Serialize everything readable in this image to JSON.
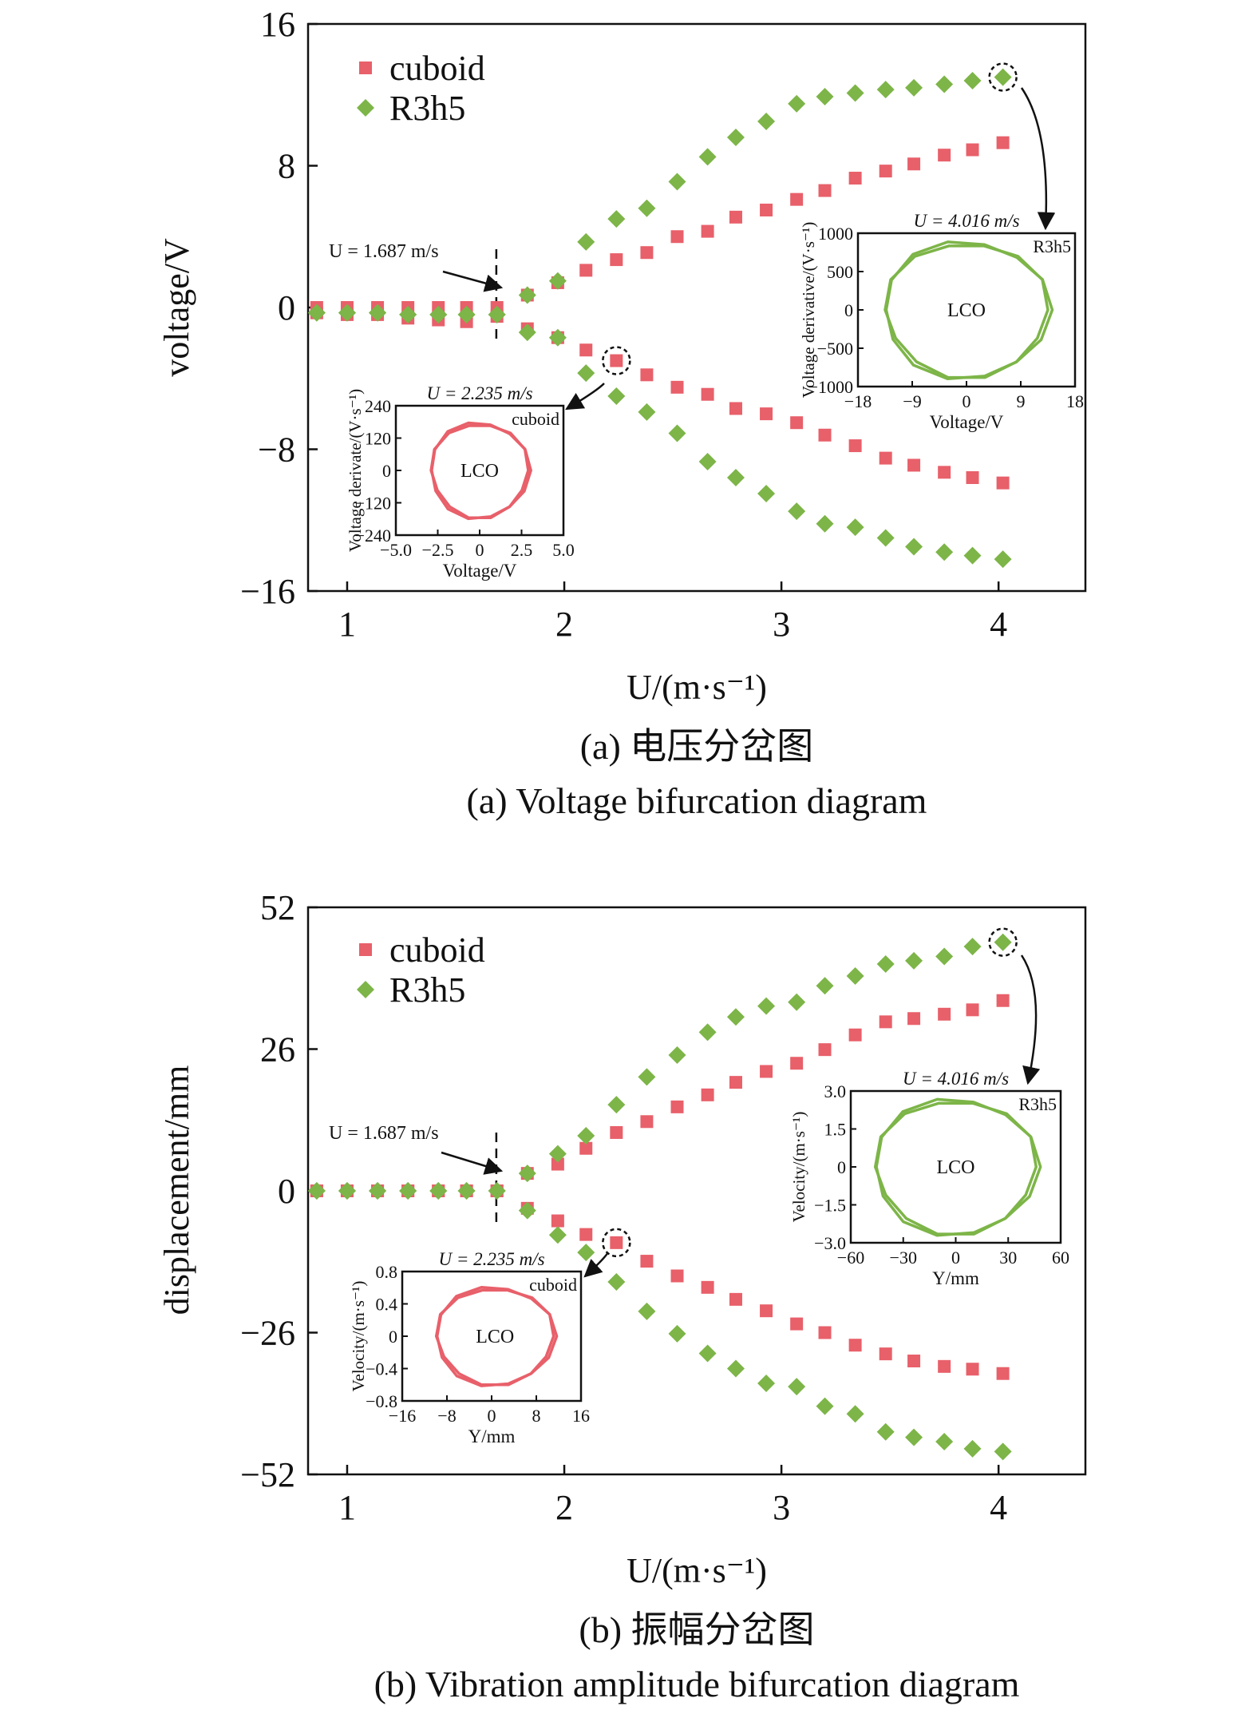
{
  "colors": {
    "cuboid": "#e8606a",
    "r3h5": "#7db548",
    "axis": "#111111"
  },
  "chart_data": [
    {
      "type": "scatter",
      "caption_zh": "(a) 电压分岔图",
      "caption_en": "(a) Voltage bifurcation diagram",
      "xlabel": "U/(m·s⁻¹)",
      "ylabel": "voltage/V",
      "xlim": [
        0.82,
        4.4
      ],
      "ylim": [
        -16,
        16
      ],
      "xticks": [
        1,
        2,
        3,
        4
      ],
      "yticks": [
        16,
        8,
        0,
        -8,
        -16
      ],
      "yticklabels": [
        "16",
        "8",
        "0",
        "−8",
        "−16"
      ],
      "legend": {
        "placement": "top-left",
        "entries": [
          "cuboid",
          "R3h5"
        ]
      },
      "onset_annotation": {
        "x": 1.687,
        "label": "U = 1.687 m/s"
      },
      "x": [
        0.86,
        1.0,
        1.14,
        1.28,
        1.42,
        1.55,
        1.69,
        1.83,
        1.97,
        2.1,
        2.24,
        2.38,
        2.52,
        2.66,
        2.79,
        2.93,
        3.07,
        3.2,
        3.34,
        3.48,
        3.61,
        3.75,
        3.88,
        4.02
      ],
      "series": [
        {
          "name": "cuboid",
          "marker": "square",
          "color": "#e8606a",
          "upper": [
            0.0,
            0.0,
            0.0,
            0.0,
            0.0,
            0.0,
            0.0,
            0.7,
            1.4,
            2.1,
            2.7,
            3.1,
            4.0,
            4.3,
            5.1,
            5.5,
            6.1,
            6.6,
            7.3,
            7.7,
            8.1,
            8.6,
            8.9,
            9.3
          ],
          "lower": [
            -0.3,
            -0.4,
            -0.4,
            -0.6,
            -0.7,
            -0.8,
            -0.5,
            -1.2,
            -1.7,
            -2.4,
            -3.0,
            -3.8,
            -4.5,
            -4.9,
            -5.7,
            -6.0,
            -6.5,
            -7.2,
            -7.8,
            -8.5,
            -8.9,
            -9.3,
            -9.6,
            -9.9
          ]
        },
        {
          "name": "R3h5",
          "marker": "diamond",
          "color": "#7db548",
          "upper": [
            -0.3,
            -0.3,
            -0.3,
            -0.4,
            -0.4,
            -0.4,
            -0.4,
            0.7,
            1.5,
            3.7,
            5.0,
            5.6,
            7.1,
            8.5,
            9.6,
            10.5,
            11.5,
            11.9,
            12.1,
            12.3,
            12.4,
            12.6,
            12.8,
            13.0
          ],
          "lower": [
            -0.3,
            -0.3,
            -0.3,
            -0.4,
            -0.4,
            -0.4,
            -0.4,
            -1.4,
            -1.7,
            -3.7,
            -5.0,
            -5.9,
            -7.1,
            -8.7,
            -9.6,
            -10.5,
            -11.5,
            -12.2,
            -12.4,
            -13.0,
            -13.5,
            -13.8,
            -14.0,
            -14.2
          ]
        }
      ],
      "insets": [
        {
          "type": "line",
          "series_name": "cuboid",
          "title": "U = 2.235 m/s",
          "label": "cuboid",
          "center_text": "LCO",
          "xlabel": "Voltage/V",
          "ylabel": "Voltage derivate/(V·s⁻¹)",
          "xlim": [
            -5,
            5
          ],
          "ylim": [
            -240,
            240
          ],
          "xticklabels": [
            "−5.0",
            "−2.5",
            "0",
            "2.5",
            "5.0"
          ],
          "yticklabels": [
            "240",
            "120",
            "0",
            "−120",
            "−240"
          ],
          "orbit": {
            "center_x": 0,
            "center_y": 0,
            "amp_x": 2.9,
            "amp_y": 175
          },
          "source_point": {
            "x": 2.24,
            "y": -3.0
          }
        },
        {
          "type": "line",
          "series_name": "R3h5",
          "title": "U = 4.016 m/s",
          "label": "R3h5",
          "center_text": "LCO",
          "xlabel": "Voltage/V",
          "ylabel": "Voltage derivative/(V·s⁻¹)",
          "xlim": [
            -18,
            18
          ],
          "ylim": [
            -1000,
            1000
          ],
          "xticklabels": [
            "−18",
            "−9",
            "0",
            "9",
            "18"
          ],
          "yticklabels": [
            "1000",
            "500",
            "0",
            "−500",
            "−1000"
          ],
          "orbit": {
            "center_x": 0,
            "center_y": 0,
            "amp_x": 13.5,
            "amp_y": 880
          },
          "source_point": {
            "x": 4.02,
            "y": 13.0
          }
        }
      ]
    },
    {
      "type": "scatter",
      "caption_zh": "(b) 振幅分岔图",
      "caption_en": "(b) Vibration amplitude bifurcation diagram",
      "xlabel": "U/(m·s⁻¹)",
      "ylabel": "displacement/mm",
      "xlim": [
        0.82,
        4.4
      ],
      "ylim": [
        -52,
        52
      ],
      "xticks": [
        1,
        2,
        3,
        4
      ],
      "yticks": [
        52,
        26,
        0,
        -26,
        -52
      ],
      "yticklabels": [
        "52",
        "26",
        "0",
        "−26",
        "−52"
      ],
      "legend": {
        "placement": "top-left",
        "entries": [
          "cuboid",
          "R3h5"
        ]
      },
      "onset_annotation": {
        "x": 1.687,
        "label": "U = 1.687 m/s"
      },
      "x": [
        0.86,
        1.0,
        1.14,
        1.28,
        1.42,
        1.55,
        1.69,
        1.83,
        1.97,
        2.1,
        2.24,
        2.38,
        2.52,
        2.66,
        2.79,
        2.93,
        3.07,
        3.2,
        3.34,
        3.48,
        3.61,
        3.75,
        3.88,
        4.02
      ],
      "series": [
        {
          "name": "cuboid",
          "marker": "square",
          "color": "#e8606a",
          "upper": [
            0.0,
            0.0,
            0.0,
            0.0,
            0.0,
            0.0,
            0.0,
            3.2,
            4.9,
            7.8,
            10.7,
            12.7,
            15.4,
            17.6,
            19.9,
            21.9,
            23.4,
            25.9,
            28.6,
            31.0,
            31.6,
            32.4,
            33.2,
            34.9
          ],
          "lower": [
            0.0,
            0.0,
            0.0,
            0.0,
            0.0,
            0.0,
            0.0,
            -3.2,
            -5.5,
            -8.0,
            -9.5,
            -12.9,
            -15.6,
            -17.7,
            -19.9,
            -22.0,
            -24.4,
            -26.0,
            -28.3,
            -29.9,
            -31.2,
            -32.2,
            -32.7,
            -33.5
          ]
        },
        {
          "name": "R3h5",
          "marker": "diamond",
          "color": "#7db548",
          "upper": [
            0.0,
            0.0,
            0.0,
            0.0,
            0.0,
            0.0,
            0.0,
            3.2,
            6.8,
            10.1,
            15.8,
            20.9,
            24.9,
            29.1,
            31.9,
            33.9,
            34.6,
            37.6,
            39.4,
            41.6,
            42.2,
            43.0,
            44.8,
            45.6
          ],
          "lower": [
            0.0,
            0.0,
            0.0,
            0.0,
            0.0,
            0.0,
            0.0,
            -3.6,
            -8.1,
            -11.3,
            -16.7,
            -22.1,
            -26.2,
            -29.8,
            -32.6,
            -35.3,
            -35.9,
            -39.5,
            -40.9,
            -44.2,
            -45.2,
            -46.0,
            -47.3,
            -47.8
          ]
        }
      ],
      "insets": [
        {
          "type": "line",
          "series_name": "cuboid",
          "title": "U = 2.235 m/s",
          "label": "cuboid",
          "center_text": "LCO",
          "xlabel": "Y/mm",
          "ylabel": "Velocity/(m·s⁻¹)",
          "xlim": [
            -16,
            16
          ],
          "ylim": [
            -0.8,
            0.8
          ],
          "xticklabels": [
            "−16",
            "−8",
            "0",
            "8",
            "16"
          ],
          "yticklabels": [
            "0.8",
            "0.4",
            "0",
            "−0.4",
            "−0.8"
          ],
          "orbit": {
            "center_x": 0.6,
            "center_y": 0,
            "amp_x": 10.5,
            "amp_y": 0.6
          },
          "source_point": {
            "x": 2.24,
            "y": -9.5
          }
        },
        {
          "type": "line",
          "series_name": "R3h5",
          "title": "U = 4.016 m/s",
          "label": "R3h5",
          "center_text": "LCO",
          "xlabel": "Y/mm",
          "ylabel": "Velocity/(m·s⁻¹)",
          "xlim": [
            -60,
            60
          ],
          "ylim": [
            -3.0,
            3.0
          ],
          "xticklabels": [
            "−60",
            "−30",
            "0",
            "30",
            "60"
          ],
          "yticklabels": [
            "3.0",
            "1.5",
            "0",
            "−1.5",
            "−3.0"
          ],
          "orbit": {
            "center_x": 0,
            "center_y": 0,
            "amp_x": 46,
            "amp_y": 2.65
          },
          "source_point": {
            "x": 4.02,
            "y": 45.6
          }
        }
      ]
    }
  ]
}
